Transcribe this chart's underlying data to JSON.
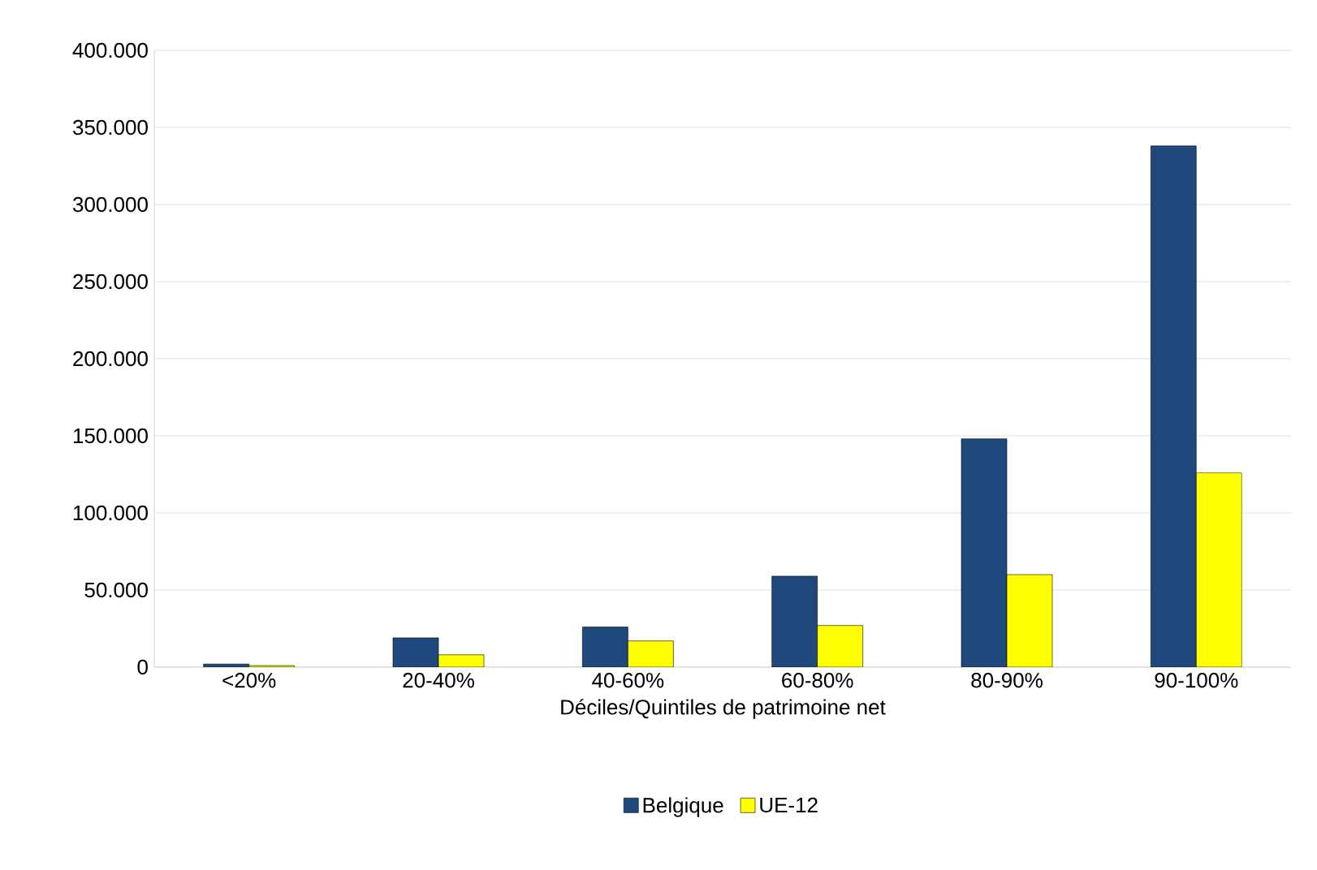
{
  "chart_data": {
    "type": "bar",
    "xlabel": "Déciles/Quintiles de patrimoine net",
    "categories": [
      "<20%",
      "20-40%",
      "40-60%",
      "60-80%",
      "80-90%",
      "90-100%"
    ],
    "series": [
      {
        "name": "Belgique",
        "color": "#1f497d",
        "values": [
          2000,
          19000,
          26000,
          59000,
          148000,
          338000
        ]
      },
      {
        "name": "UE-12",
        "color": "#ffff00",
        "values": [
          1000,
          8000,
          17000,
          27000,
          60000,
          126000
        ]
      }
    ],
    "ylim": [
      0,
      400000
    ],
    "yticks": [
      {
        "value": 0,
        "label": "0"
      },
      {
        "value": 50000,
        "label": "50.000"
      },
      {
        "value": 100000,
        "label": "100.000"
      },
      {
        "value": 150000,
        "label": "150.000"
      },
      {
        "value": 200000,
        "label": "200.000"
      },
      {
        "value": 250000,
        "label": "250.000"
      },
      {
        "value": 300000,
        "label": "300.000"
      },
      {
        "value": 350000,
        "label": "350.000"
      },
      {
        "value": 400000,
        "label": "400.000"
      }
    ],
    "grid": "y",
    "legend": "bottom"
  }
}
